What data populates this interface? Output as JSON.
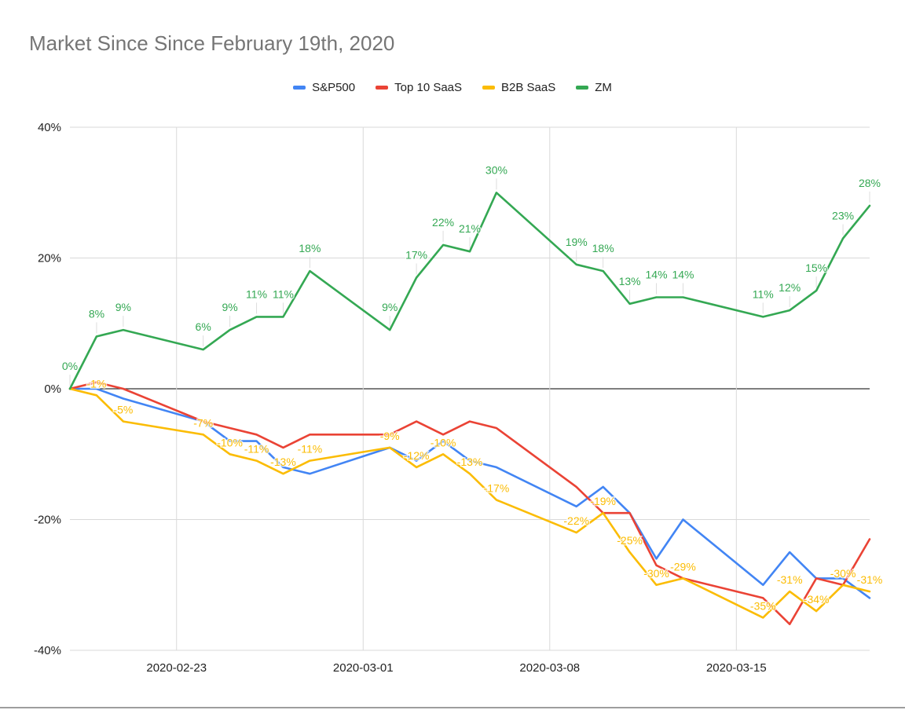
{
  "chart_data": {
    "type": "line",
    "title": "Market Since Since February 19th, 2020",
    "xlabel": "",
    "ylabel": "",
    "x": [
      "2020-02-19",
      "2020-02-20",
      "2020-02-21",
      "2020-02-24",
      "2020-02-25",
      "2020-02-26",
      "2020-02-27",
      "2020-02-28",
      "2020-03-02",
      "2020-03-03",
      "2020-03-04",
      "2020-03-05",
      "2020-03-06",
      "2020-03-09",
      "2020-03-10",
      "2020-03-11",
      "2020-03-12",
      "2020-03-13",
      "2020-03-16",
      "2020-03-17",
      "2020-03-18",
      "2020-03-19",
      "2020-03-20"
    ],
    "x_ticks": [
      "2020-02-23",
      "2020-03-01",
      "2020-03-08",
      "2020-03-15"
    ],
    "ylim": [
      -40,
      40
    ],
    "y_ticks": [
      40,
      20,
      0,
      -20,
      -40
    ],
    "y_tick_labels": [
      "40%",
      "20%",
      "0%",
      "-20%",
      "-40%"
    ],
    "grid": true,
    "legend_position": "top",
    "series": [
      {
        "name": "S&P500",
        "color": "#4285F4",
        "values": [
          0,
          0,
          -1.5,
          -5,
          -8,
          -8,
          -12,
          -13,
          -9,
          -11,
          -8,
          -11,
          -12,
          -18,
          -15,
          -19,
          -26,
          -20,
          -30,
          -25,
          -29,
          -29,
          -32
        ],
        "labels": []
      },
      {
        "name": "Top 10 SaaS",
        "color": "#EA4335",
        "values": [
          0,
          1,
          0,
          -5,
          -6,
          -7,
          -9,
          -7,
          -7,
          -5,
          -7,
          -5,
          -6,
          -15,
          -19,
          -19,
          -27,
          -29,
          -32,
          -36,
          -29,
          -30,
          -23
        ],
        "labels": []
      },
      {
        "name": "B2B SaaS",
        "color": "#FBBC04",
        "values": [
          0,
          -1,
          -5,
          -7,
          -10,
          -11,
          -13,
          -11,
          -9,
          -12,
          -10,
          -13,
          -17,
          -22,
          -19,
          -25,
          -30,
          -29,
          -35,
          -31,
          -34,
          -30,
          -31
        ],
        "labels": [
          "",
          "-1%",
          "-5%",
          "-7%",
          "-10%",
          "-11%",
          "-13%",
          "-11%",
          "-9%",
          "-12%",
          "-10%",
          "-13%",
          "-17%",
          "-22%",
          "-19%",
          "-25%",
          "-30%",
          "-29%",
          "-35%",
          "-31%",
          "-34%",
          "-30%",
          "-31%"
        ]
      },
      {
        "name": "ZM",
        "color": "#34A853",
        "values": [
          0,
          8,
          9,
          6,
          9,
          11,
          11,
          18,
          9,
          17,
          22,
          21,
          30,
          19,
          18,
          13,
          14,
          14,
          11,
          12,
          15,
          23,
          28
        ],
        "labels": [
          "0%",
          "8%",
          "9%",
          "6%",
          "9%",
          "11%",
          "11%",
          "18%",
          "9%",
          "17%",
          "22%",
          "21%",
          "30%",
          "19%",
          "18%",
          "13%",
          "14%",
          "14%",
          "11%",
          "12%",
          "15%",
          "23%",
          "28%"
        ]
      }
    ]
  }
}
